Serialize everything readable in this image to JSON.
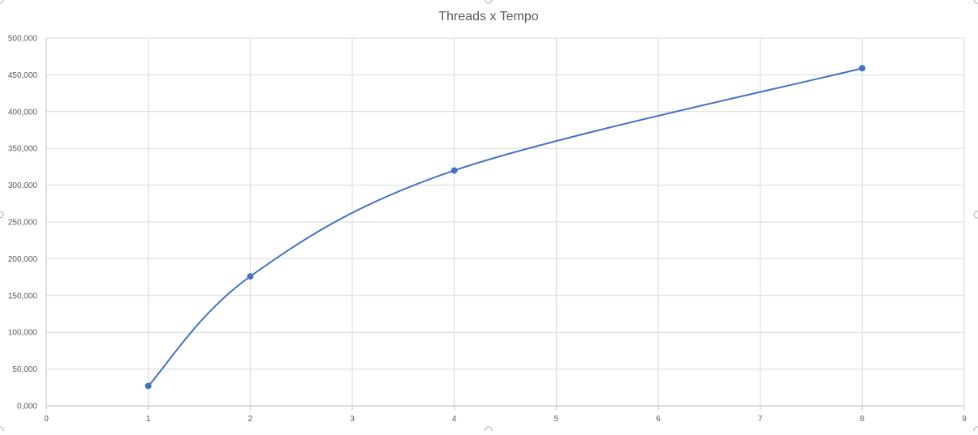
{
  "chart_data": {
    "type": "scatter",
    "title": "Threads x Tempo",
    "xlabel": "",
    "ylabel": "",
    "xlim": [
      0,
      9
    ],
    "ylim": [
      0,
      500000
    ],
    "x_ticks": [
      "0",
      "1",
      "2",
      "3",
      "4",
      "5",
      "6",
      "7",
      "8",
      "9"
    ],
    "y_ticks": [
      "0,000",
      "50,000",
      "100,000",
      "150,000",
      "200,000",
      "250,000",
      "300,000",
      "350,000",
      "400,000",
      "450,000",
      "500,000"
    ],
    "grid": true,
    "smooth": true,
    "legend": "none",
    "series": [
      {
        "color": "#4472c4",
        "points": [
          {
            "x": 1,
            "y": 27000
          },
          {
            "x": 2,
            "y": 176000
          },
          {
            "x": 4,
            "y": 320000
          },
          {
            "x": 8,
            "y": 459000
          }
        ]
      }
    ]
  }
}
